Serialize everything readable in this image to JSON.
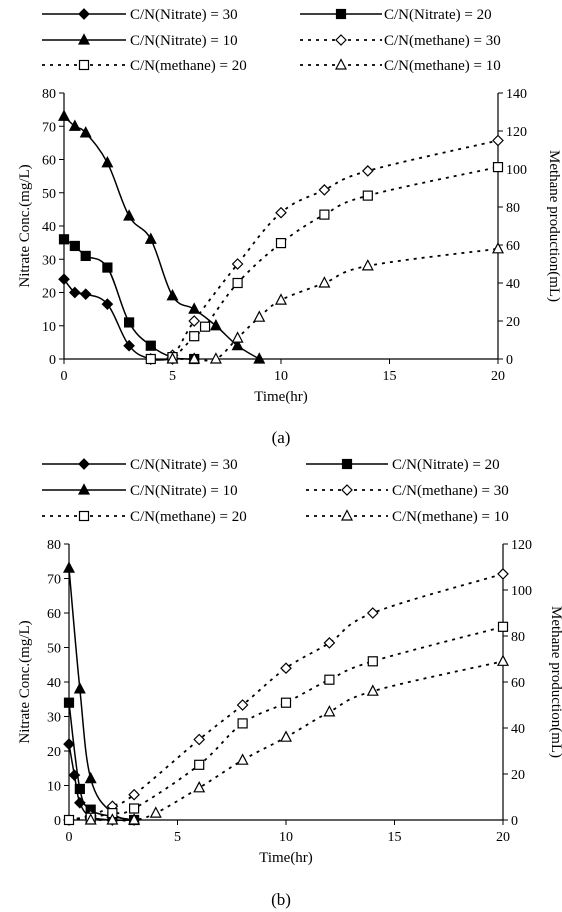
{
  "chart_data": [
    {
      "type": "line",
      "panel_label": "(a)",
      "xlabel": "Time(hr)",
      "ylabel": "Nitrate Conc.(mg/L)",
      "y2label": "Methane production(mL)",
      "xlim": [
        0,
        20
      ],
      "ylim": [
        0,
        80
      ],
      "y2lim": [
        0,
        140
      ],
      "x_ticks": [
        0,
        5,
        10,
        15,
        20
      ],
      "y_ticks": [
        0,
        10,
        20,
        30,
        40,
        50,
        60,
        70,
        80
      ],
      "y2_ticks": [
        0,
        20,
        40,
        60,
        80,
        100,
        120,
        140
      ],
      "grid": false,
      "legend_position": "top",
      "series": [
        {
          "name": "C/N(Nitrate) = 30",
          "axis": "left",
          "marker": "diamond-filled",
          "style": "solid",
          "x": [
            0,
            0.5,
            1,
            2,
            3,
            4,
            5
          ],
          "y": [
            24,
            20,
            19.5,
            16.5,
            4,
            0,
            0
          ]
        },
        {
          "name": "C/N(Nitrate) = 20",
          "axis": "left",
          "marker": "square-filled",
          "style": "solid",
          "x": [
            0,
            0.5,
            1,
            2,
            3,
            4,
            5,
            6
          ],
          "y": [
            36,
            34,
            31,
            27.5,
            11,
            4,
            0.5,
            0
          ]
        },
        {
          "name": "C/N(Nitrate) = 10",
          "axis": "left",
          "marker": "triangle-filled",
          "style": "solid",
          "x": [
            0,
            0.5,
            1,
            2,
            3,
            4,
            5,
            6,
            7,
            8,
            9
          ],
          "y": [
            73,
            70,
            68,
            59,
            43,
            36,
            19,
            15,
            10,
            4,
            0
          ]
        },
        {
          "name": "C/N(methane) = 30",
          "axis": "right",
          "marker": "diamond-open",
          "style": "dotted",
          "x": [
            4,
            5,
            6,
            8,
            10,
            12,
            14,
            20
          ],
          "y": [
            0,
            2,
            20,
            50,
            77,
            89,
            99,
            115
          ]
        },
        {
          "name": "C/N(methane) = 20",
          "axis": "right",
          "marker": "square-open",
          "style": "dotted",
          "x": [
            4,
            5,
            6,
            6.5,
            8,
            10,
            12,
            14,
            20
          ],
          "y": [
            0,
            1,
            12,
            17,
            40,
            61,
            76,
            86,
            101
          ]
        },
        {
          "name": "C/N(methane) = 10",
          "axis": "right",
          "marker": "triangle-open",
          "style": "dotted",
          "x": [
            5,
            6,
            7,
            8,
            9,
            10,
            12,
            14,
            20
          ],
          "y": [
            0,
            0,
            0,
            11,
            22,
            31,
            40,
            49,
            58
          ]
        }
      ]
    },
    {
      "type": "line",
      "panel_label": "(b)",
      "xlabel": "Time(hr)",
      "ylabel": "Nitrate Conc.(mg/L)",
      "y2label": "Methane production(mL)",
      "xlim": [
        0,
        20
      ],
      "ylim": [
        0,
        80
      ],
      "y2lim": [
        0,
        120
      ],
      "x_ticks": [
        0,
        5,
        10,
        15,
        20
      ],
      "y_ticks": [
        0,
        10,
        20,
        30,
        40,
        50,
        60,
        70,
        80
      ],
      "y2_ticks": [
        0,
        20,
        40,
        60,
        80,
        100,
        120
      ],
      "grid": false,
      "legend_position": "top",
      "series": [
        {
          "name": "C/N(Nitrate) = 30",
          "axis": "left",
          "marker": "diamond-filled",
          "style": "solid",
          "x": [
            0,
            0.25,
            0.5,
            1,
            2,
            3
          ],
          "y": [
            22,
            13,
            5,
            1,
            0,
            0
          ]
        },
        {
          "name": "C/N(Nitrate) = 20",
          "axis": "left",
          "marker": "square-filled",
          "style": "solid",
          "x": [
            0,
            0.5,
            1,
            2,
            3
          ],
          "y": [
            34,
            9,
            3,
            1,
            0
          ]
        },
        {
          "name": "C/N(Nitrate) = 10",
          "axis": "left",
          "marker": "triangle-filled",
          "style": "solid",
          "x": [
            0,
            0.5,
            1,
            2,
            3
          ],
          "y": [
            73,
            38,
            12,
            2,
            0
          ]
        },
        {
          "name": "C/N(methane) = 30",
          "axis": "right",
          "marker": "diamond-open",
          "style": "dotted",
          "x": [
            0,
            1,
            2,
            3,
            6,
            8,
            10,
            12,
            14,
            20
          ],
          "y": [
            0,
            2,
            6,
            11,
            35,
            50,
            66,
            77,
            90,
            107
          ]
        },
        {
          "name": "C/N(methane) = 20",
          "axis": "right",
          "marker": "square-open",
          "style": "dotted",
          "x": [
            0,
            1,
            2,
            3,
            6,
            8,
            10,
            12,
            14,
            20
          ],
          "y": [
            0,
            1,
            3,
            5,
            24,
            42,
            51,
            61,
            69,
            84
          ]
        },
        {
          "name": "C/N(methane) = 10",
          "axis": "right",
          "marker": "triangle-open",
          "style": "dotted",
          "x": [
            1,
            2,
            3,
            4,
            6,
            8,
            10,
            12,
            14,
            20
          ],
          "y": [
            0,
            0,
            0,
            3,
            14,
            26,
            36,
            47,
            56,
            69
          ]
        }
      ]
    }
  ]
}
